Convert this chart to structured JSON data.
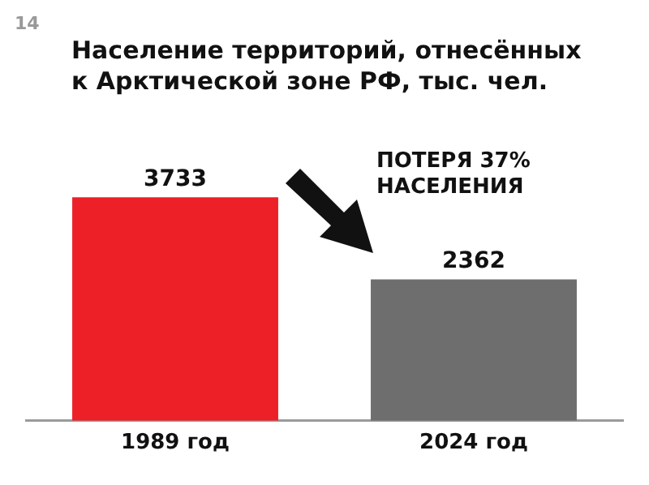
{
  "chart_data": {
    "type": "bar",
    "title": "Население территорий, отнесённых к Арктической зоне РФ, тыс. чел.",
    "categories": [
      "1989 год",
      "2024 год"
    ],
    "values": [
      3733,
      2362
    ],
    "colors": [
      "#ed2027",
      "#6e6e6e"
    ],
    "data_labels": true,
    "grid": false,
    "legend": false,
    "tick_labels": "x",
    "annotations": [
      "14",
      "ПОТЕРЯ 37% НАСЕЛЕНИЯ"
    ]
  }
}
